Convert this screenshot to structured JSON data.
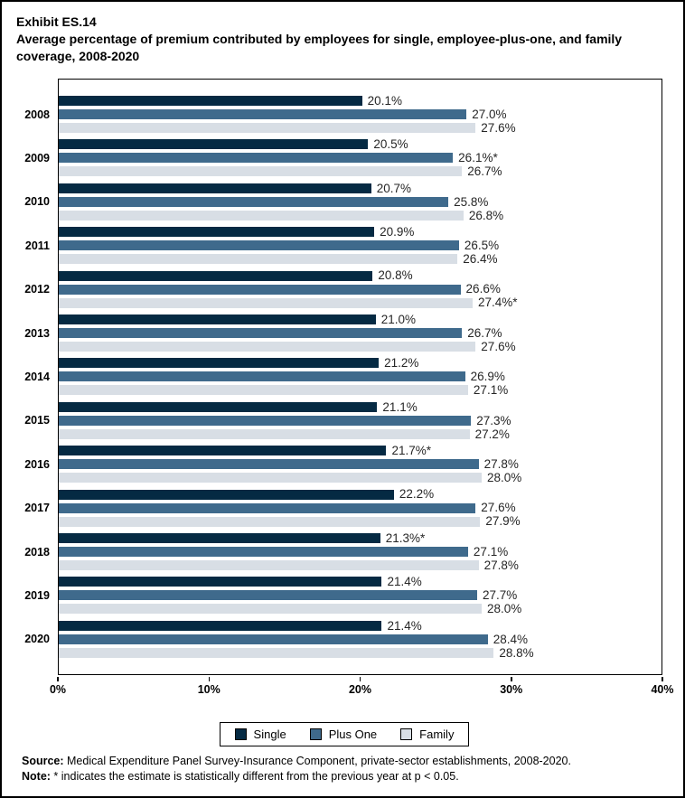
{
  "figure": {
    "exhibit_label": "Exhibit ES.14",
    "title": "Average percentage of premium contributed by employees for single, employee-plus-one, and family coverage, 2008-2020"
  },
  "chart_data": {
    "type": "bar",
    "orientation": "horizontal",
    "title": "Average percentage of premium contributed by employees for single, employee-plus-one, and family coverage, 2008-2020",
    "categories": [
      "2008",
      "2009",
      "2010",
      "2011",
      "2012",
      "2013",
      "2014",
      "2015",
      "2016",
      "2017",
      "2018",
      "2019",
      "2020"
    ],
    "series": [
      {
        "name": "Single",
        "key": "single",
        "color": "#052A43",
        "values": [
          20.1,
          20.5,
          20.7,
          20.9,
          20.8,
          21.0,
          21.2,
          21.1,
          21.7,
          22.2,
          21.3,
          21.4,
          21.4
        ],
        "labels": [
          "20.1%",
          "20.5%",
          "20.7%",
          "20.9%",
          "20.8%",
          "21.0%",
          "21.2%",
          "21.1%",
          "21.7%*",
          "22.2%",
          "21.3%*",
          "21.4%",
          "21.4%"
        ]
      },
      {
        "name": "Plus One",
        "key": "plus-one",
        "color": "#3F6A8C",
        "values": [
          27.0,
          26.1,
          25.8,
          26.5,
          26.6,
          26.7,
          26.9,
          27.3,
          27.8,
          27.6,
          27.1,
          27.7,
          28.4
        ],
        "labels": [
          "27.0%",
          "26.1%*",
          "25.8%",
          "26.5%",
          "26.6%",
          "26.7%",
          "26.9%",
          "27.3%",
          "27.8%",
          "27.6%",
          "27.1%",
          "27.7%",
          "28.4%"
        ]
      },
      {
        "name": "Family",
        "key": "family",
        "color": "#D8DEE5",
        "values": [
          27.6,
          26.7,
          26.8,
          26.4,
          27.4,
          27.6,
          27.1,
          27.2,
          28.0,
          27.9,
          27.8,
          28.0,
          28.8
        ],
        "labels": [
          "27.6%",
          "26.7%",
          "26.8%",
          "26.4%",
          "27.4%*",
          "27.6%",
          "27.1%",
          "27.2%",
          "28.0%",
          "27.9%",
          "27.8%",
          "28.0%",
          "28.8%"
        ]
      }
    ],
    "x_ticks": [
      "0%",
      "10%",
      "20%",
      "30%",
      "40%"
    ],
    "xlim": [
      0,
      40
    ],
    "grid": false,
    "legend_position": "bottom"
  },
  "legend": {
    "items": [
      {
        "label": "Single",
        "color": "#052A43"
      },
      {
        "label": "Plus One",
        "color": "#3F6A8C"
      },
      {
        "label": "Family",
        "color": "#D8DEE5"
      }
    ]
  },
  "footer": {
    "source_label": "Source:",
    "source_text": " Medical Expenditure Panel Survey-Insurance Component, private-sector establishments, 2008-2020.",
    "note_label": "Note:",
    "note_text": " * indicates the estimate is statistically different from the previous year at p < 0.05."
  }
}
